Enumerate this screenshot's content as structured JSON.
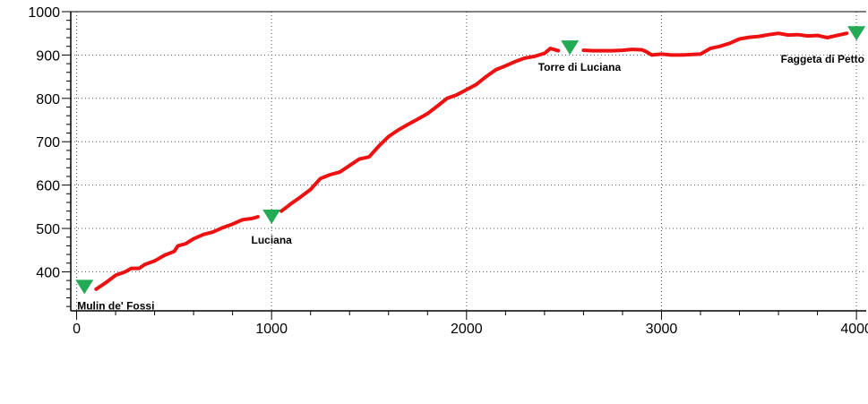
{
  "chart_data": {
    "type": "line",
    "title": "",
    "xlabel": "",
    "ylabel": "",
    "xlim": [
      -30,
      4050
    ],
    "ylim": [
      310,
      1000
    ],
    "x_ticks": [
      0,
      1000,
      2000,
      3000,
      4000
    ],
    "x_tick_labels": [
      "0",
      "1000",
      "2000",
      "3000",
      "4000"
    ],
    "y_ticks": [
      400,
      500,
      600,
      700,
      800,
      900,
      1000
    ],
    "y_tick_labels": [
      "400",
      "500",
      "600",
      "700",
      "800",
      "900",
      "1000"
    ],
    "grid": true,
    "grid_style": "dotted",
    "line_color": "#ee1111",
    "marker_color": "#22aa55",
    "series": [
      {
        "values": [
          [
            [
              100,
              360
            ],
            [
              150,
              375
            ],
            [
              200,
              392
            ],
            [
              250,
              400
            ],
            [
              280,
              408
            ],
            [
              320,
              408
            ],
            [
              350,
              417
            ],
            [
              400,
              425
            ],
            [
              450,
              438
            ],
            [
              500,
              447
            ],
            [
              520,
              460
            ],
            [
              560,
              465
            ],
            [
              600,
              476
            ],
            [
              650,
              486
            ],
            [
              700,
              492
            ],
            [
              750,
              502
            ],
            [
              800,
              510
            ],
            [
              850,
              520
            ],
            [
              900,
              523
            ],
            [
              930,
              527
            ]
          ],
          [
            [
              1050,
              540
            ],
            [
              1100,
              557
            ],
            [
              1150,
              573
            ],
            [
              1200,
              590
            ],
            [
              1250,
              615
            ],
            [
              1300,
              624
            ],
            [
              1350,
              630
            ],
            [
              1400,
              645
            ],
            [
              1450,
              660
            ],
            [
              1500,
              665
            ],
            [
              1550,
              690
            ],
            [
              1600,
              712
            ],
            [
              1650,
              727
            ],
            [
              1700,
              740
            ],
            [
              1750,
              752
            ],
            [
              1800,
              765
            ],
            [
              1850,
              782
            ],
            [
              1900,
              800
            ],
            [
              1950,
              808
            ],
            [
              2000,
              820
            ],
            [
              2050,
              832
            ],
            [
              2100,
              850
            ],
            [
              2150,
              866
            ],
            [
              2200,
              875
            ],
            [
              2250,
              885
            ],
            [
              2300,
              893
            ],
            [
              2350,
              897
            ],
            [
              2400,
              904
            ],
            [
              2430,
              915
            ],
            [
              2470,
              910
            ]
          ],
          [
            [
              2600,
              911
            ],
            [
              2650,
              910
            ],
            [
              2700,
              910
            ],
            [
              2750,
              910
            ],
            [
              2800,
              911
            ],
            [
              2850,
              913
            ],
            [
              2900,
              912
            ],
            [
              2920,
              908
            ],
            [
              2950,
              900
            ],
            [
              3000,
              902
            ],
            [
              3050,
              900
            ],
            [
              3100,
              900
            ],
            [
              3150,
              901
            ],
            [
              3200,
              902
            ],
            [
              3250,
              915
            ],
            [
              3300,
              920
            ],
            [
              3350,
              927
            ],
            [
              3400,
              937
            ],
            [
              3450,
              941
            ],
            [
              3500,
              943
            ],
            [
              3550,
              947
            ],
            [
              3600,
              950
            ],
            [
              3650,
              946
            ],
            [
              3700,
              947
            ],
            [
              3750,
              944
            ],
            [
              3800,
              945
            ],
            [
              3850,
              940
            ],
            [
              3900,
              945
            ],
            [
              3950,
              950
            ]
          ]
        ]
      }
    ],
    "waypoints": [
      {
        "label": "Mulin de' Fossi",
        "x": 40,
        "y": 365
      },
      {
        "label": "Luciana",
        "x": 1000,
        "y": 527
      },
      {
        "label": "Torre di Luciana",
        "x": 2530,
        "y": 917
      },
      {
        "label": "Faggeta di Petto",
        "x": 4000,
        "y": 950
      }
    ]
  }
}
